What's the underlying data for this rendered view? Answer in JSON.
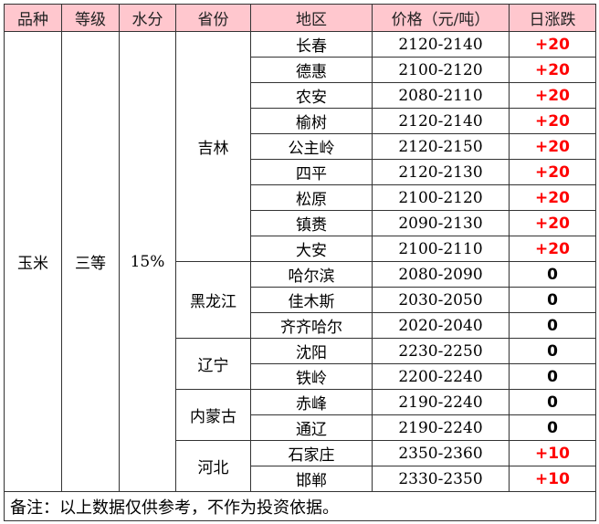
{
  "headers": [
    "品种",
    "等级",
    "水分",
    "省份",
    "地区",
    "价格（元/吨）",
    "日涨跌"
  ],
  "variety": "玉米",
  "grade": "三等",
  "moisture": "15%",
  "colors": {
    "header_bg": "#ffc7ce",
    "up": "#ff0000",
    "flat": "#000000"
  },
  "provinces": [
    {
      "name": "吉林",
      "rows": [
        {
          "area": "长春",
          "price": "2120-2140",
          "change": "+20"
        },
        {
          "area": "德惠",
          "price": "2100-2120",
          "change": "+20"
        },
        {
          "area": "农安",
          "price": "2080-2110",
          "change": "+20"
        },
        {
          "area": "榆树",
          "price": "2120-2140",
          "change": "+20"
        },
        {
          "area": "公主岭",
          "price": "2120-2150",
          "change": "+20"
        },
        {
          "area": "四平",
          "price": "2120-2130",
          "change": "+20"
        },
        {
          "area": "松原",
          "price": "2100-2120",
          "change": "+20"
        },
        {
          "area": "镇赉",
          "price": "2090-2130",
          "change": "+20"
        },
        {
          "area": "大安",
          "price": "2100-2110",
          "change": "+20"
        }
      ]
    },
    {
      "name": "黑龙江",
      "rows": [
        {
          "area": "哈尔滨",
          "price": "2080-2090",
          "change": "0"
        },
        {
          "area": "佳木斯",
          "price": "2030-2050",
          "change": "0"
        },
        {
          "area": "齐齐哈尔",
          "price": "2020-2040",
          "change": "0"
        }
      ]
    },
    {
      "name": "辽宁",
      "rows": [
        {
          "area": "沈阳",
          "price": "2230-2250",
          "change": "0"
        },
        {
          "area": "铁岭",
          "price": "2200-2240",
          "change": "0"
        }
      ]
    },
    {
      "name": "内蒙古",
      "rows": [
        {
          "area": "赤峰",
          "price": "2190-2240",
          "change": "0"
        },
        {
          "area": "通辽",
          "price": "2190-2240",
          "change": "0"
        }
      ]
    },
    {
      "name": "河北",
      "rows": [
        {
          "area": "石家庄",
          "price": "2350-2360",
          "change": "+10"
        },
        {
          "area": "邯郸",
          "price": "2330-2350",
          "change": "+10"
        }
      ]
    }
  ],
  "note": "备注：以上数据仅供参考，不作为投资依据。"
}
